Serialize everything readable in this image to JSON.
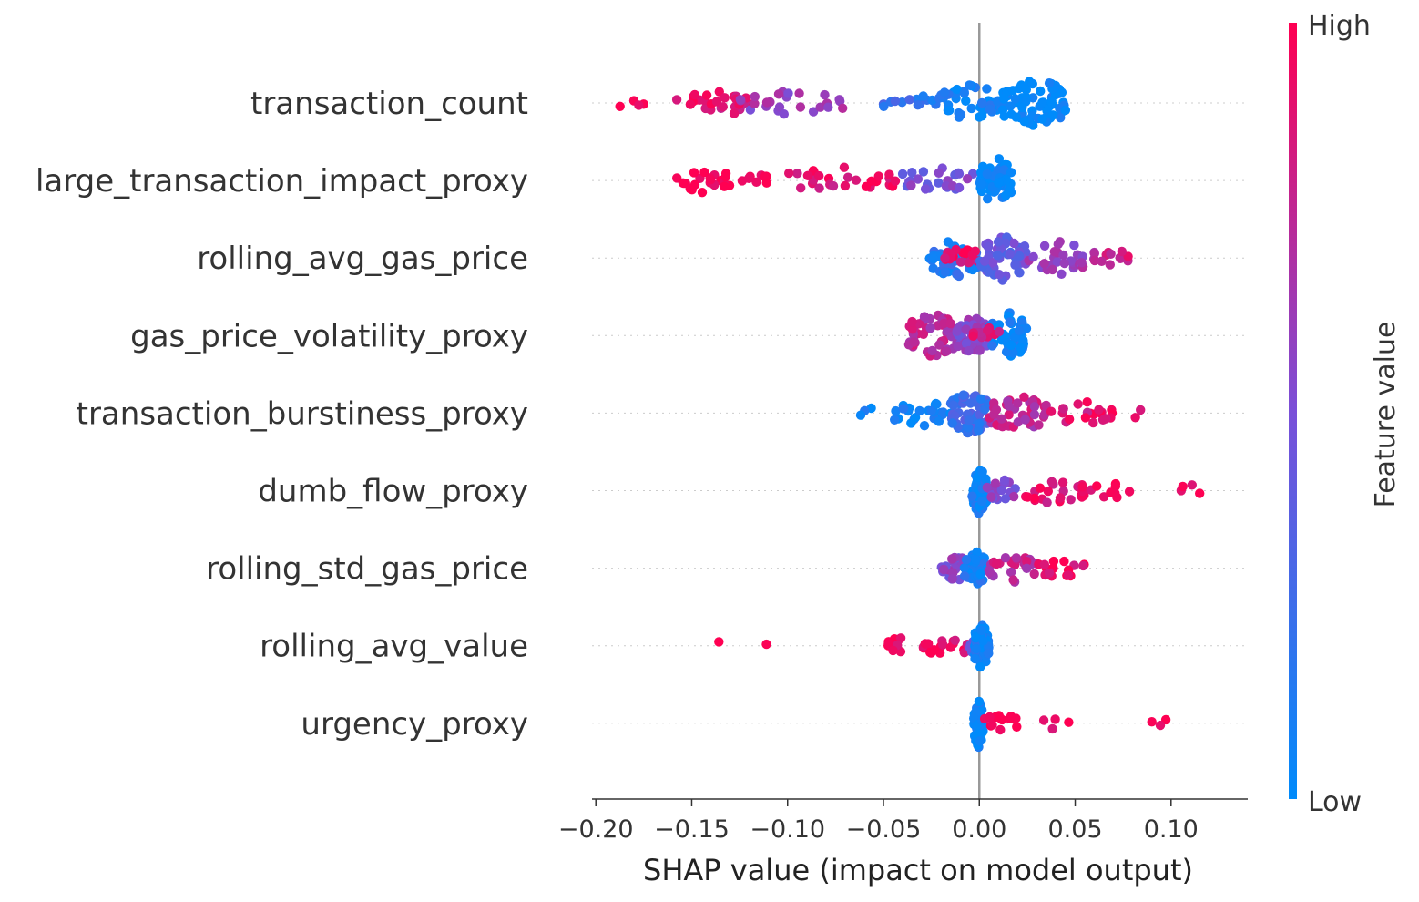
{
  "chart_data": {
    "type": "scatter",
    "subtype": "shap-beeswarm",
    "title": "",
    "xlabel": "SHAP value (impact on model output)",
    "xlim": [
      -0.202,
      0.14
    ],
    "xticks": [
      -0.2,
      -0.15,
      -0.1,
      -0.05,
      0.0,
      0.05,
      0.1
    ],
    "xtick_labels": [
      "−0.20",
      "−0.15",
      "−0.10",
      "−0.05",
      "0.00",
      "0.05",
      "0.10"
    ],
    "colorbar": {
      "label": "Feature value",
      "high_label": "High",
      "low_label": "Low",
      "high_color": "#ff0052",
      "low_color": "#008bfb"
    },
    "grid": "dotted horizontal per feature",
    "features": [
      {
        "name": "transaction_count",
        "ranges": [
          [
            -0.19,
            -0.175,
            0.95,
            4
          ],
          [
            -0.158,
            -0.12,
            0.9,
            30
          ],
          [
            -0.125,
            -0.06,
            0.6,
            25
          ],
          [
            -0.06,
            -0.02,
            0.2,
            14
          ],
          [
            -0.02,
            0.012,
            0.05,
            45
          ],
          [
            0.012,
            0.045,
            0.0,
            70
          ]
        ]
      },
      {
        "name": "large_transaction_impact_proxy",
        "ranges": [
          [
            -0.158,
            -0.13,
            0.97,
            22
          ],
          [
            -0.125,
            -0.11,
            0.95,
            8
          ],
          [
            -0.1,
            -0.04,
            0.9,
            28
          ],
          [
            -0.04,
            0.0,
            0.5,
            25
          ],
          [
            0.0,
            0.017,
            0.0,
            60
          ]
        ]
      },
      {
        "name": "rolling_avg_gas_price",
        "ranges": [
          [
            -0.026,
            0.0,
            0.15,
            50
          ],
          [
            -0.018,
            0.0,
            0.9,
            18
          ],
          [
            0.0,
            0.025,
            0.4,
            55
          ],
          [
            0.025,
            0.06,
            0.6,
            35
          ],
          [
            0.06,
            0.082,
            0.8,
            12
          ]
        ]
      },
      {
        "name": "gas_price_volatility_proxy",
        "ranges": [
          [
            -0.038,
            -0.01,
            0.75,
            55
          ],
          [
            -0.012,
            0.005,
            0.55,
            45
          ],
          [
            0.005,
            0.025,
            0.05,
            60
          ],
          [
            -0.005,
            0.012,
            0.85,
            10
          ]
        ]
      },
      {
        "name": "transaction_burstiness_proxy",
        "ranges": [
          [
            -0.063,
            -0.05,
            0.05,
            3
          ],
          [
            -0.045,
            -0.015,
            0.05,
            25
          ],
          [
            -0.015,
            0.005,
            0.25,
            55
          ],
          [
            0.005,
            0.035,
            0.75,
            45
          ],
          [
            0.035,
            0.07,
            0.88,
            22
          ],
          [
            0.08,
            0.085,
            0.95,
            2
          ]
        ]
      },
      {
        "name": "dumb_flow_proxy",
        "ranges": [
          [
            -0.004,
            0.004,
            0.05,
            60
          ],
          [
            0.004,
            0.02,
            0.55,
            20
          ],
          [
            0.02,
            0.055,
            0.9,
            25
          ],
          [
            0.055,
            0.08,
            0.95,
            10
          ],
          [
            0.095,
            0.12,
            0.97,
            4
          ]
        ]
      },
      {
        "name": "rolling_std_gas_price",
        "ranges": [
          [
            -0.02,
            -0.005,
            0.55,
            25
          ],
          [
            -0.008,
            0.005,
            0.1,
            40
          ],
          [
            0.005,
            0.03,
            0.75,
            30
          ],
          [
            0.03,
            0.057,
            0.92,
            18
          ]
        ]
      },
      {
        "name": "rolling_avg_value",
        "ranges": [
          [
            -0.137,
            -0.135,
            0.97,
            1
          ],
          [
            -0.112,
            -0.11,
            0.97,
            1
          ],
          [
            -0.05,
            -0.035,
            0.97,
            10
          ],
          [
            -0.03,
            -0.005,
            0.93,
            18
          ],
          [
            -0.005,
            0.004,
            0.4,
            18
          ],
          [
            -0.003,
            0.005,
            0.05,
            55
          ]
        ]
      },
      {
        "name": "urgency_proxy",
        "ranges": [
          [
            -0.003,
            0.002,
            0.03,
            60
          ],
          [
            0.002,
            0.02,
            0.97,
            15
          ],
          [
            0.03,
            0.048,
            0.97,
            4
          ],
          [
            0.085,
            0.1,
            0.97,
            3
          ]
        ]
      }
    ]
  }
}
